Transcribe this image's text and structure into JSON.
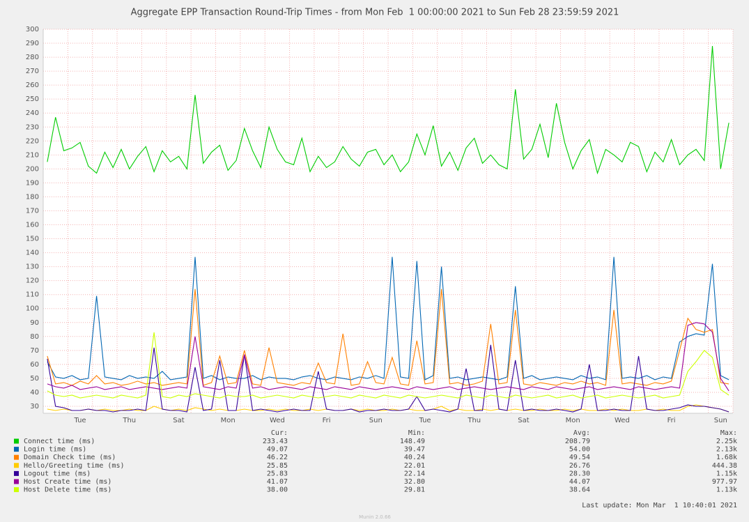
{
  "chart_data": {
    "type": "line",
    "title": "Aggregate EPP Transaction Round-Trip Times - from Mon Feb  1 00:00:00 2021 to Sun Feb 28 23:59:59 2021",
    "categories": [
      null,
      null,
      null,
      null,
      "Tue",
      null,
      null,
      null,
      null,
      null,
      "Thu",
      null,
      null,
      null,
      null,
      null,
      "Sat",
      null,
      null,
      null,
      null,
      null,
      "Mon",
      null,
      null,
      null,
      null,
      null,
      "Wed",
      null,
      null,
      null,
      null,
      null,
      "Fri",
      null,
      null,
      null,
      null,
      null,
      "Sun",
      null,
      null,
      null,
      null,
      null,
      "Tue",
      null,
      null,
      null,
      null,
      null,
      "Thu",
      null,
      null,
      null,
      null,
      null,
      "Sat",
      null,
      null,
      null,
      null,
      null,
      "Mon",
      null,
      null,
      null,
      null,
      null,
      "Wed",
      null,
      null,
      null,
      null,
      null,
      "Fri",
      null,
      null,
      null,
      null,
      null,
      "Sun",
      null
    ],
    "series": [
      {
        "name": "Connect time (ms)",
        "color": "#00cc00",
        "values": [
          205,
          237,
          213,
          215,
          219,
          202,
          197,
          212,
          201,
          214,
          200,
          209,
          216,
          198,
          213,
          205,
          209,
          200,
          253,
          204,
          212,
          217,
          199,
          206,
          229,
          213,
          201,
          230,
          214,
          205,
          203,
          222,
          198,
          209,
          201,
          205,
          216,
          207,
          202,
          212,
          214,
          203,
          210,
          198,
          205,
          225,
          210,
          231,
          202,
          212,
          199,
          215,
          222,
          204,
          210,
          203,
          200,
          257,
          207,
          214,
          232,
          208,
          247,
          219,
          200,
          213,
          221,
          197,
          214,
          210,
          205,
          219,
          216,
          198,
          212,
          205,
          221,
          203,
          210,
          214,
          206,
          288,
          200,
          233
        ]
      },
      {
        "name": "Login time (ms)",
        "color": "#0066b3",
        "values": [
          62,
          51,
          50,
          52,
          49,
          50,
          109,
          51,
          50,
          49,
          52,
          50,
          51,
          50,
          55,
          49,
          50,
          51,
          137,
          50,
          52,
          49,
          51,
          50,
          50,
          52,
          49,
          51,
          50,
          50,
          49,
          51,
          52,
          50,
          49,
          51,
          50,
          49,
          51,
          50,
          52,
          50,
          137,
          51,
          50,
          134,
          49,
          52,
          130,
          50,
          51,
          49,
          50,
          51,
          50,
          49,
          51,
          116,
          50,
          52,
          49,
          50,
          51,
          50,
          49,
          52,
          50,
          51,
          49,
          137,
          50,
          51,
          50,
          52,
          49,
          51,
          50,
          76,
          80,
          82,
          81,
          132,
          52,
          49
        ]
      },
      {
        "name": "Domain Check time (ms)",
        "color": "#ff8000",
        "values": [
          66,
          46,
          47,
          45,
          48,
          46,
          52,
          46,
          47,
          45,
          46,
          48,
          46,
          47,
          45,
          46,
          47,
          46,
          114,
          45,
          47,
          66,
          46,
          47,
          70,
          46,
          45,
          72,
          47,
          46,
          45,
          47,
          46,
          61,
          47,
          46,
          82,
          45,
          46,
          62,
          47,
          46,
          65,
          46,
          45,
          77,
          46,
          47,
          114,
          46,
          47,
          45,
          46,
          48,
          89,
          46,
          47,
          99,
          46,
          45,
          47,
          46,
          45,
          47,
          46,
          48,
          46,
          47,
          45,
          99,
          46,
          47,
          46,
          45,
          47,
          46,
          48,
          70,
          93,
          85,
          83,
          85,
          47,
          46
        ]
      },
      {
        "name": "Hello/Greeting time (ms)",
        "color": "#ffcc00",
        "values": [
          28,
          27,
          28,
          27,
          27,
          28,
          27,
          28,
          27,
          27,
          28,
          27,
          27,
          30,
          28,
          27,
          28,
          27,
          29,
          28,
          27,
          28,
          27,
          27,
          28,
          27,
          27,
          28,
          27,
          28,
          27,
          27,
          28,
          27,
          28,
          27,
          27,
          28,
          27,
          28,
          27,
          27,
          28,
          27,
          28,
          27,
          27,
          28,
          30,
          27,
          28,
          27,
          27,
          28,
          27,
          28,
          27,
          28,
          27,
          27,
          28,
          27,
          27,
          28,
          27,
          28,
          27,
          27,
          28,
          27,
          28,
          27,
          27,
          28,
          27,
          28,
          27,
          27,
          30,
          31,
          30,
          29,
          28,
          26
        ]
      },
      {
        "name": "Logout time (ms)",
        "color": "#330099",
        "values": [
          64,
          30,
          29,
          27,
          27,
          28,
          27,
          27,
          26,
          27,
          27,
          28,
          27,
          72,
          28,
          27,
          27,
          26,
          58,
          27,
          28,
          63,
          27,
          27,
          67,
          27,
          28,
          27,
          26,
          27,
          28,
          27,
          27,
          55,
          28,
          27,
          27,
          28,
          26,
          27,
          27,
          28,
          27,
          27,
          28,
          37,
          27,
          28,
          27,
          26,
          28,
          57,
          27,
          27,
          74,
          28,
          27,
          63,
          27,
          28,
          27,
          27,
          28,
          27,
          26,
          28,
          60,
          27,
          27,
          28,
          27,
          27,
          66,
          28,
          27,
          27,
          28,
          29,
          31,
          30,
          30,
          29,
          28,
          26
        ]
      },
      {
        "name": "Host Create time (ms)",
        "color": "#990099",
        "values": [
          46,
          44,
          43,
          45,
          42,
          43,
          44,
          42,
          43,
          44,
          42,
          43,
          44,
          43,
          42,
          43,
          44,
          43,
          80,
          44,
          43,
          42,
          44,
          43,
          67,
          43,
          44,
          42,
          43,
          44,
          43,
          42,
          44,
          43,
          42,
          44,
          43,
          42,
          44,
          43,
          42,
          43,
          44,
          43,
          42,
          44,
          43,
          42,
          43,
          44,
          42,
          43,
          44,
          43,
          42,
          43,
          44,
          43,
          42,
          44,
          43,
          42,
          44,
          43,
          42,
          43,
          44,
          42,
          43,
          44,
          43,
          42,
          44,
          43,
          42,
          43,
          44,
          43,
          88,
          90,
          89,
          83,
          50,
          41
        ]
      },
      {
        "name": "Host Delete time (ms)",
        "color": "#ccff00",
        "values": [
          41,
          38,
          37,
          38,
          36,
          37,
          38,
          37,
          36,
          38,
          37,
          36,
          38,
          83,
          37,
          36,
          38,
          37,
          39,
          38,
          37,
          36,
          38,
          37,
          37,
          38,
          36,
          37,
          38,
          37,
          36,
          38,
          37,
          36,
          37,
          38,
          37,
          36,
          38,
          37,
          36,
          38,
          37,
          36,
          38,
          37,
          36,
          37,
          38,
          37,
          36,
          38,
          37,
          36,
          38,
          37,
          36,
          38,
          37,
          36,
          37,
          38,
          36,
          37,
          38,
          36,
          37,
          38,
          36,
          37,
          38,
          37,
          36,
          37,
          38,
          36,
          37,
          38,
          55,
          62,
          70,
          65,
          42,
          38
        ]
      }
    ],
    "ylim": [
      25,
      300
    ],
    "yticks": [
      30,
      40,
      50,
      60,
      70,
      80,
      90,
      100,
      110,
      120,
      130,
      140,
      150,
      160,
      170,
      180,
      190,
      200,
      210,
      220,
      230,
      240,
      250,
      260,
      270,
      280,
      290,
      300
    ],
    "grid": true
  },
  "legend_table": {
    "headers": [
      "Cur:",
      "Min:",
      "Avg:",
      "Max:"
    ],
    "rows": [
      [
        "233.43",
        "148.49",
        "208.79",
        "2.25k"
      ],
      [
        "49.07",
        "39.47",
        "54.00",
        "2.13k"
      ],
      [
        "46.22",
        "40.24",
        "49.54",
        "1.68k"
      ],
      [
        "25.85",
        "22.01",
        "26.76",
        "444.38"
      ],
      [
        "25.83",
        "22.14",
        "28.30",
        "1.15k"
      ],
      [
        "41.07",
        "32.80",
        "44.07",
        "977.97"
      ],
      [
        "38.00",
        "29.81",
        "38.64",
        "1.13k"
      ]
    ]
  },
  "footer": {
    "last_update": "Last update: Mon Mar  1 10:40:01 2021",
    "version": "Munin 2.0.66"
  }
}
